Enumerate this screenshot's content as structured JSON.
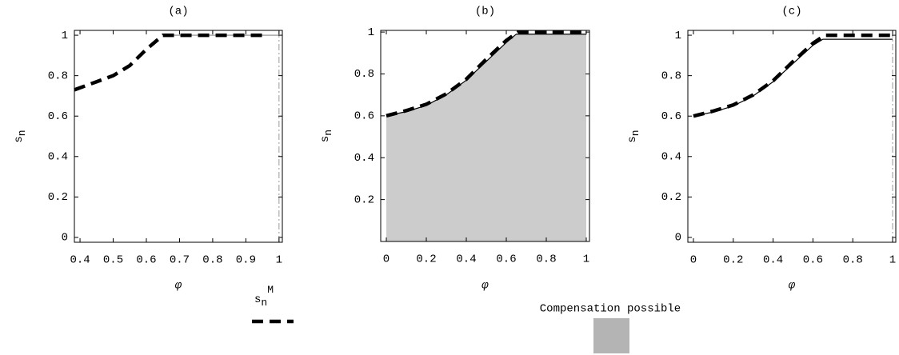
{
  "chart_data": [
    {
      "type": "line",
      "title": "(a)",
      "x_label": "φ",
      "y_label": [
        "s",
        "n"
      ],
      "xlim": [
        0.383,
        1.01
      ],
      "ylim": [
        -0.024,
        1.024
      ],
      "xticks": [
        0.4,
        0.5,
        0.6,
        0.7,
        0.8,
        0.9,
        1
      ],
      "yticks": [
        0,
        0.2,
        0.4,
        0.6,
        0.8,
        1
      ],
      "series": [
        {
          "style": "solid",
          "color": "#888888",
          "x": [
            0.65,
            1
          ],
          "values": [
            1,
            1
          ]
        },
        {
          "style": "dashdot",
          "color": "#999999",
          "x": [
            1,
            1
          ],
          "values": [
            -0.024,
            1.024
          ]
        },
        {
          "style": "dashed",
          "color": "#000000",
          "x": [
            0.383,
            0.45,
            0.5,
            0.55,
            0.6,
            0.65,
            0.7,
            0.8,
            0.95
          ],
          "values": [
            0.73,
            0.77,
            0.8,
            0.85,
            0.93,
            1,
            1,
            1,
            1
          ]
        }
      ]
    },
    {
      "type": "line",
      "title": "(b)",
      "x_label": "φ",
      "y_label": [
        "s",
        "n"
      ],
      "xlim": [
        -0.028,
        1.016
      ],
      "ylim": [
        0,
        1.008
      ],
      "xticks": [
        0,
        0.2,
        0.4,
        0.6,
        0.8,
        1
      ],
      "yticks": [
        0.2,
        0.4,
        0.6,
        0.8,
        1
      ],
      "series": [
        {
          "style": "fill",
          "color": "#cccccc",
          "x": [
            0,
            0.1,
            0.2,
            0.3,
            0.4,
            0.5,
            0.6,
            0.65,
            1
          ],
          "values": [
            0.6,
            0.62,
            0.65,
            0.7,
            0.77,
            0.86,
            0.95,
            0.99,
            0.99
          ]
        },
        {
          "style": "solid",
          "color": "#000000",
          "x": [
            0,
            0.1,
            0.2,
            0.3,
            0.4,
            0.5,
            0.6,
            0.65,
            1
          ],
          "values": [
            0.6,
            0.62,
            0.65,
            0.7,
            0.77,
            0.86,
            0.95,
            0.99,
            0.99
          ]
        },
        {
          "style": "dashed",
          "color": "#000000",
          "x": [
            0,
            0.1,
            0.2,
            0.3,
            0.4,
            0.5,
            0.6,
            0.66,
            1
          ],
          "values": [
            0.6,
            0.625,
            0.655,
            0.705,
            0.775,
            0.87,
            0.96,
            1,
            1
          ]
        }
      ]
    },
    {
      "type": "line",
      "title": "(c)",
      "x_label": "φ",
      "y_label": [
        "s",
        "n"
      ],
      "xlim": [
        -0.028,
        1.016
      ],
      "ylim": [
        -0.024,
        1.024
      ],
      "xticks": [
        0,
        0.2,
        0.4,
        0.6,
        0.8,
        1
      ],
      "yticks": [
        0,
        0.2,
        0.4,
        0.6,
        0.8,
        1
      ],
      "series": [
        {
          "style": "dashdot",
          "color": "#999999",
          "x": [
            1,
            1
          ],
          "values": [
            -0.024,
            1.024
          ]
        },
        {
          "style": "solid",
          "color": "#000000",
          "x": [
            0,
            0.1,
            0.2,
            0.3,
            0.4,
            0.5,
            0.6,
            0.65,
            1
          ],
          "values": [
            0.6,
            0.62,
            0.65,
            0.7,
            0.77,
            0.86,
            0.95,
            0.98,
            0.98
          ]
        },
        {
          "style": "dashed",
          "color": "#000000",
          "x": [
            0,
            0.1,
            0.2,
            0.3,
            0.4,
            0.5,
            0.6,
            0.66,
            1
          ],
          "values": [
            0.6,
            0.625,
            0.655,
            0.705,
            0.775,
            0.87,
            0.96,
            1,
            1
          ]
        }
      ]
    }
  ],
  "legend": [
    {
      "label": [
        "s",
        "n",
        "M"
      ],
      "style": "dashed",
      "color": "#000000"
    },
    {
      "label": "Compensation possible",
      "style": "fill",
      "color": "#b4b4b4"
    }
  ]
}
